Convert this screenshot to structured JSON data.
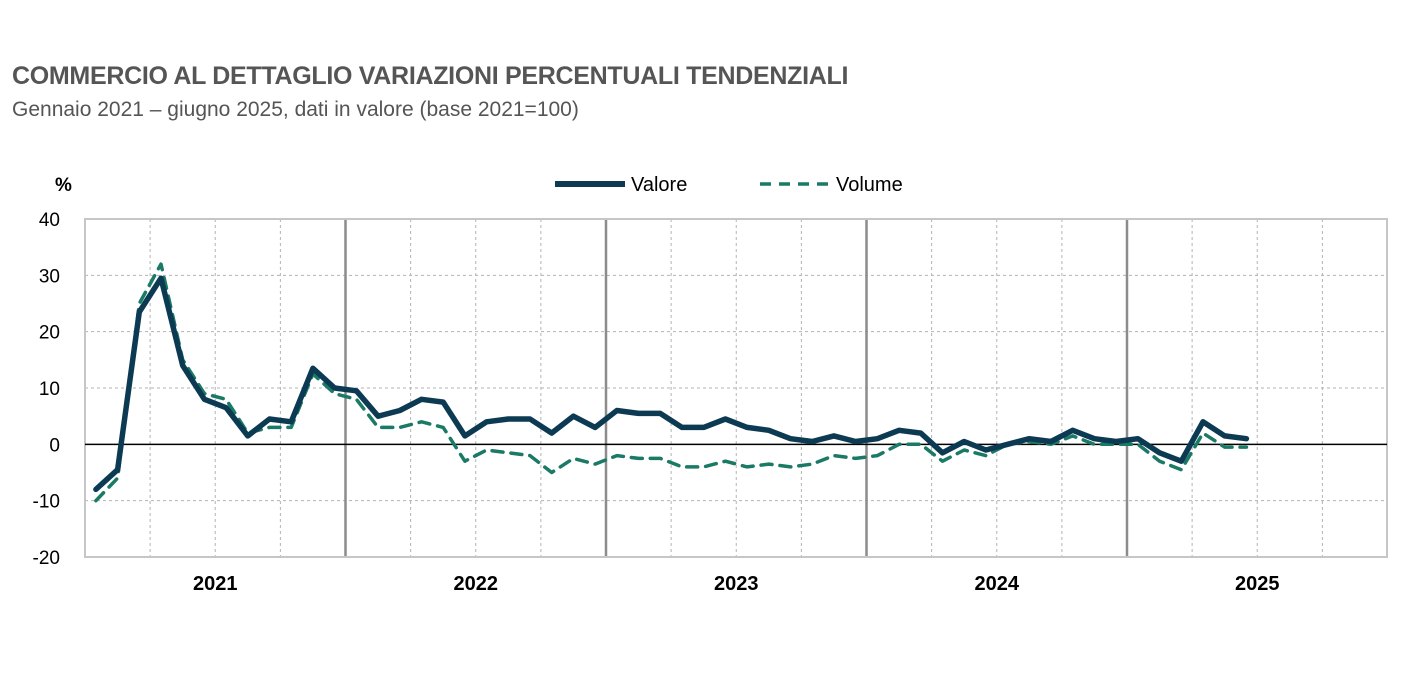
{
  "title": "COMMERCIO AL DETTAGLIO VARIAZIONI PERCENTUALI TENDENZIALI",
  "subtitle": "Gennaio 2021 – giugno 2025, dati in valore (base 2021=100)",
  "colors": {
    "valore": "#0d3a53",
    "volume": "#1a7a66",
    "grid": "#b3b3b3",
    "yearline": "#8c8c8c"
  },
  "chart_data": {
    "type": "line",
    "ylabel": "%",
    "ylim": [
      -20,
      40
    ],
    "yticks": [
      40,
      30,
      20,
      10,
      0,
      -10,
      -20
    ],
    "years": [
      "2021",
      "2022",
      "2023",
      "2024",
      "2025"
    ],
    "months_per_year": 12,
    "grid": true,
    "legend_position": "top-center",
    "series": [
      {
        "name": "Valore",
        "style": "solid",
        "values": [
          -8,
          -4.5,
          23.5,
          29.5,
          14,
          8,
          6.5,
          1.5,
          4.5,
          4,
          13.5,
          10,
          9.5,
          5,
          6,
          8,
          7.5,
          1.5,
          4,
          4.5,
          4.5,
          2,
          5,
          3,
          6,
          5.5,
          5.5,
          3,
          3,
          4.5,
          3,
          2.5,
          1,
          0.5,
          1.5,
          0.5,
          1,
          2.5,
          2,
          -1.5,
          0.5,
          -1,
          0,
          1,
          0.5,
          2.5,
          1,
          0.5,
          1,
          -1.5,
          -3,
          4,
          1.5,
          1
        ]
      },
      {
        "name": "Volume",
        "style": "dashed",
        "values": [
          -10,
          -6,
          25,
          32,
          15,
          9,
          8,
          2,
          3,
          3,
          12.5,
          9,
          8,
          3,
          3,
          4,
          3,
          -3,
          -1,
          -1.5,
          -2,
          -5,
          -2.5,
          -3.5,
          -2,
          -2.5,
          -2.5,
          -4,
          -4,
          -3,
          -4,
          -3.5,
          -4,
          -3.5,
          -2,
          -2.5,
          -2,
          0,
          0,
          -3,
          -1,
          -2,
          0,
          0.5,
          0,
          1.5,
          0,
          0,
          0,
          -3,
          -4.5,
          2,
          -0.5,
          -0.5
        ]
      }
    ]
  }
}
